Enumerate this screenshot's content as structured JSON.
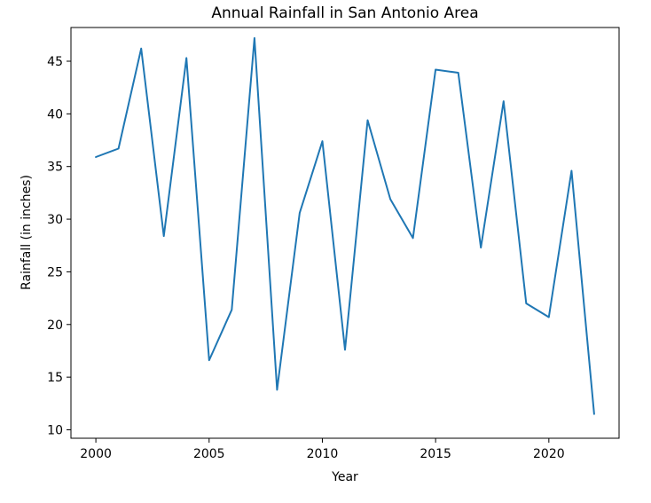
{
  "chart_data": {
    "type": "line",
    "title": "Annual Rainfall in San Antonio Area",
    "xlabel": "Year",
    "ylabel": "Rainfall (in inches)",
    "xlim": [
      1998.9,
      2023.1
    ],
    "ylim": [
      9.2,
      48.2
    ],
    "x_ticks": [
      2000,
      2005,
      2010,
      2015,
      2020
    ],
    "y_ticks": [
      10,
      15,
      20,
      25,
      30,
      35,
      40,
      45
    ],
    "grid": false,
    "legend": "none",
    "series": [
      {
        "color": "#1f77b4",
        "x": [
          2000,
          2001,
          2002,
          2003,
          2004,
          2005,
          2006,
          2007,
          2008,
          2009,
          2010,
          2011,
          2012,
          2013,
          2014,
          2015,
          2016,
          2017,
          2018,
          2019,
          2020,
          2021,
          2022
        ],
        "y": [
          35.9,
          36.7,
          46.2,
          28.4,
          45.3,
          16.6,
          21.4,
          47.2,
          13.8,
          30.6,
          37.4,
          17.6,
          39.4,
          31.9,
          28.2,
          44.2,
          43.9,
          27.3,
          41.2,
          22.0,
          20.7,
          34.6,
          11.5
        ]
      }
    ]
  }
}
